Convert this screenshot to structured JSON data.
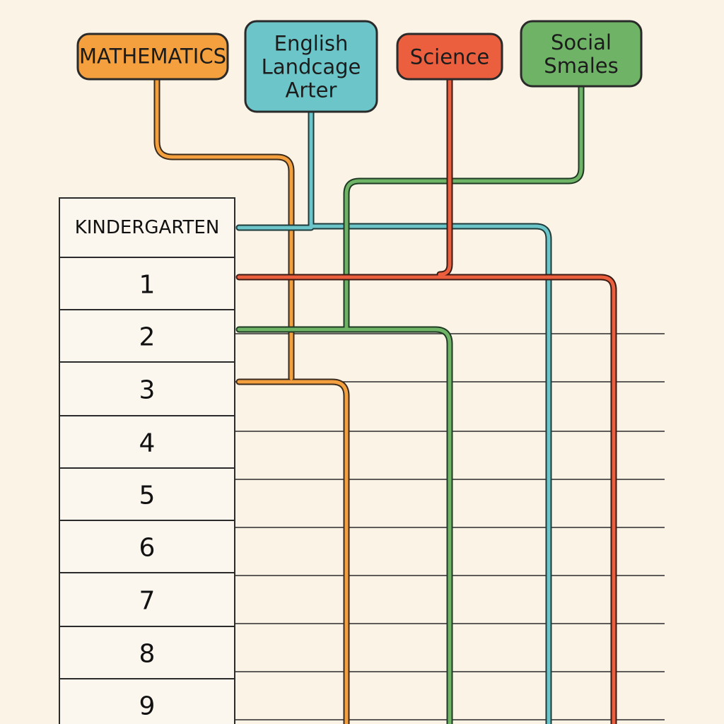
{
  "subjects": [
    {
      "id": "math",
      "lines": [
        "MATHEMATICS"
      ],
      "color": "#f4a03e"
    },
    {
      "id": "ela",
      "lines": [
        "English",
        "Landcage",
        "Arter"
      ],
      "color": "#6cc6c9"
    },
    {
      "id": "science",
      "lines": [
        "Science"
      ],
      "color": "#eb5f3e"
    },
    {
      "id": "social",
      "lines": [
        "Social",
        "Smales"
      ],
      "color": "#6fb466"
    }
  ],
  "grades": [
    "KINDERGARTEN",
    "1",
    "2",
    "3",
    "4",
    "5",
    "6",
    "7",
    "8",
    "9"
  ]
}
